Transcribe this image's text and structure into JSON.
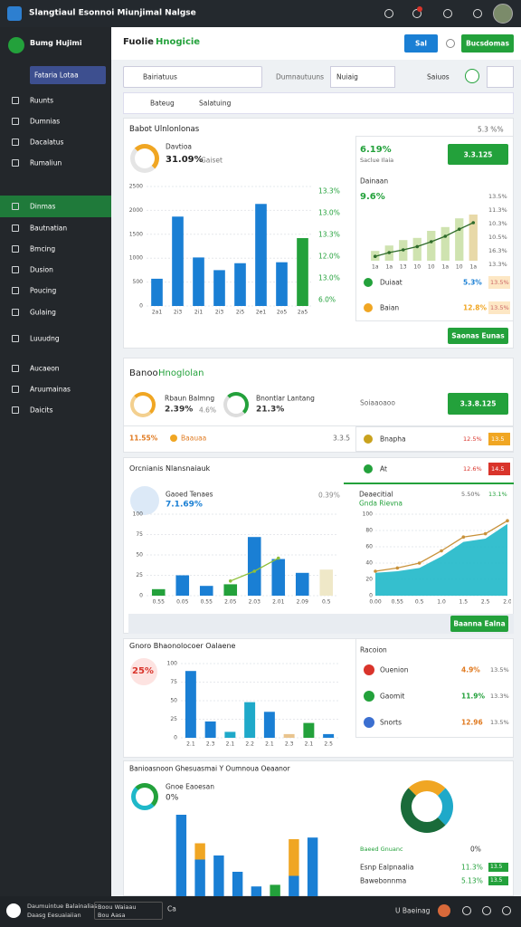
{
  "header": {
    "title": "Slangtiaul Esonnoi Miunjimal Nalgse"
  },
  "sidebar": {
    "brand": "Bumg Hujimi",
    "workspace": "Fataria Lotaa",
    "items": [
      "Ruunts",
      "Dumnias",
      "Dacalatus",
      "Rumaliun",
      "Dinmas",
      "Bautnatian",
      "Bmcing",
      "Dusion",
      "Poucing",
      "Gulaing",
      "Luuudng",
      "Aucaeon",
      "Aruumainas",
      "Daicits"
    ]
  },
  "page": {
    "title": "Fuolie",
    "title_accent": "Hnogicie",
    "primary_button": "Sal",
    "action_button": "Bucsdomas"
  },
  "filters": {
    "select": "Bairiatuus",
    "label": "Dumnautuuns",
    "menu": "Nuiaig",
    "option": "Saiuos",
    "tag": "Bateug",
    "tag2": "Salatuing"
  },
  "overview": {
    "title": "Babot Ulnlonlonas",
    "kpi_label": "Davtioa",
    "kpi_value": "31.09%",
    "kpi_note": "Gaiset",
    "chart": {
      "categories": [
        "2a1",
        "2i3",
        "2i1",
        "2i3",
        "2i5",
        "2e1",
        "2o5",
        "2a5"
      ],
      "values": [
        570,
        1870,
        1015,
        750,
        895,
        2135,
        915,
        1420
      ],
      "colors": [
        "#1a7fd4",
        "#1a7fd4",
        "#1a7fd4",
        "#1a7fd4",
        "#1a7fd4",
        "#1a7fd4",
        "#1a7fd4",
        "#23a13b"
      ],
      "ylim": [
        0,
        2500
      ],
      "yticks": [
        0,
        500,
        1000,
        1500,
        2000,
        2500
      ],
      "right_labels": [
        "13.3%",
        "13.0%",
        "13.3%",
        "12.0%",
        "13.0%",
        "6.0%"
      ]
    },
    "card": {
      "value": "6.19%",
      "note": "5.3 %%",
      "button": "3.3.125",
      "subtitle": "Saclue Ilaia",
      "label": "Dainaan",
      "label_value": "9.6%",
      "side_labels": [
        "13.5%",
        "11.3%",
        "10.3%",
        "10.5%",
        "16.3%",
        "13.3%"
      ],
      "chart": {
        "categories": [
          "1a",
          "1a",
          "13",
          "10",
          "10",
          "1a",
          "10",
          "1a"
        ],
        "values": [
          18,
          28,
          38,
          42,
          55,
          62,
          78,
          85
        ],
        "colors": [
          "#cfe3b0",
          "#cfe3b0",
          "#cfe3b0",
          "#cfe3b0",
          "#cfe3b0",
          "#cfe3b0",
          "#cfe3b0",
          "#e8d9a8"
        ],
        "line": [
          8,
          15,
          20,
          26,
          35,
          45,
          58,
          70
        ],
        "line_color": "#2e6b2a",
        "ylim": [
          0,
          100
        ]
      },
      "rows": [
        {
          "name": "Duiaat",
          "value": "5.3%",
          "badge": "13.5%"
        },
        {
          "name": "Baian",
          "value": "12.8%",
          "badge": "13.5%"
        }
      ],
      "footer_button": "Saonas Eunas"
    }
  },
  "monitor": {
    "title": "Banoo",
    "title_accent": "Hnoglolan",
    "kpi1_label": "Rbaun Balmng",
    "kpi1_value": "2.39%",
    "kpi1_note": "4.6%",
    "kpi2_label": "Bnontlar Lantang",
    "kpi2_value": "21.3%",
    "summary": "Soiaaoaoo",
    "button": "3.3.8.125",
    "row_value": "11.55%",
    "row_name": "Baauaa",
    "row_note": "3.3.5",
    "side_name": "Bnapha",
    "side_value": "12.5%",
    "side_badge": "13.5"
  },
  "analysis": {
    "title": "Orcnianis Nlansnaiauk",
    "side_name": "At",
    "side_value": "12.6%",
    "side_badge": "14.5",
    "kpi_label": "Gaoed Tenaes",
    "kpi_value": "7.1.69%",
    "kpi_note": "0.39%",
    "area_title": "Deaecitial",
    "area_subtitle": "Gnda Rievna",
    "area_value": "5.50%",
    "area_note": "13.1%",
    "button": "Baanna Ealna",
    "chart": {
      "categories": [
        "0.55",
        "0.05",
        "0.55",
        "2.05",
        "2.03",
        "2.01",
        "2.09",
        "0.5"
      ],
      "values": [
        8,
        25,
        12,
        14,
        72,
        45,
        28,
        32
      ],
      "colors": [
        "#23a13b",
        "#1a7fd4",
        "#1a7fd4",
        "#23a13b",
        "#1a7fd4",
        "#1a7fd4",
        "#1a7fd4",
        "#efe8c8"
      ],
      "line": [
        null,
        null,
        null,
        18,
        30,
        46,
        null,
        null
      ],
      "line_color": "#8fbf3a",
      "ylim": [
        0,
        100
      ],
      "yticks": [
        0,
        25,
        50,
        75,
        100
      ]
    },
    "area": {
      "categories": [
        "0.00",
        "0.55",
        "0.5",
        "1.0",
        "1.5",
        "2.5",
        "2.0"
      ],
      "values": [
        28,
        30,
        34,
        48,
        66,
        70,
        88
      ],
      "trend": [
        30,
        34,
        40,
        55,
        72,
        76,
        92
      ],
      "color": "#1fb8c9",
      "trend_color": "#c8923b",
      "ylim": [
        0,
        100
      ],
      "yticks": [
        0,
        20,
        40,
        60,
        80,
        100
      ]
    }
  },
  "regions": {
    "title": "Gnoro Bhaonolocoer Oalaene",
    "badge": "25%",
    "card_title": "Racoion",
    "chart": {
      "categories": [
        "2.1",
        "2.3",
        "2.1",
        "2.2",
        "2.1",
        "2.3",
        "2.1",
        "2.5"
      ],
      "values": [
        90,
        22,
        8,
        48,
        35,
        5,
        20,
        5
      ],
      "colors": [
        "#1a7fd4",
        "#1a7fd4",
        "#1fa9c9",
        "#1fa9c9",
        "#1a7fd4",
        "#e9c48e",
        "#23a13b",
        "#1a7fd4"
      ],
      "ylim": [
        0,
        100
      ],
      "yticks": [
        0,
        25,
        50,
        75,
        100
      ]
    },
    "rows": [
      {
        "name": "Ouenion",
        "value": "4.9%",
        "badge": "13.5%"
      },
      {
        "name": "Gaomit",
        "value": "11.9%",
        "badge": "13.3%"
      },
      {
        "name": "Snorts",
        "value": "12.96",
        "badge": "13.5%"
      }
    ]
  },
  "breakdown": {
    "title": "Banioasnoon Ghesuasmai Y Oumnoua Oeaanor",
    "kpi_label": "Gnoe Eaoesan",
    "kpi_value": "0%",
    "legend_label": "Baeed Gnuanc",
    "legend_value": "0%",
    "chart": {
      "values": [
        100,
        45,
        50,
        30,
        12,
        14,
        25,
        72
      ],
      "top_values": [
        0,
        20,
        0,
        0,
        0,
        0,
        45,
        0
      ],
      "colors": [
        "#1a7fd4",
        "#1a7fd4",
        "#1a7fd4",
        "#1a7fd4",
        "#1a7fd4",
        "#23a13b",
        "#1a7fd4",
        "#1a7fd4"
      ],
      "top_color": "#f0a623",
      "ylim": [
        0,
        110
      ]
    },
    "rows": [
      {
        "name": "Esnp Ealpnaalia",
        "value": "11.3%",
        "badge": "13.5"
      },
      {
        "name": "Bawebonnma",
        "value": "5.13%",
        "badge": "13.5"
      }
    ]
  },
  "footer": {
    "line1": "Daumuintue Balainalias",
    "line2": "Daasg Eesuaiaiian",
    "box1": "Boou Waiaau",
    "box2": "Bou Aasa",
    "code": "Ca",
    "user": "U Baeinag"
  }
}
